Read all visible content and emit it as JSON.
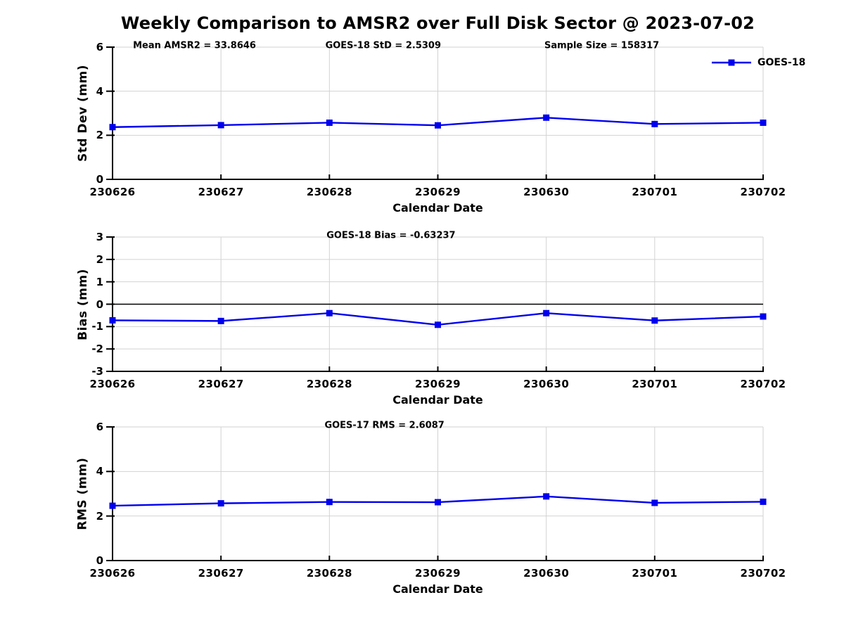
{
  "figure": {
    "title": "Weekly Comparison to AMSR2 over Full Disk Sector @ 2023-07-02",
    "background": "#ffffff"
  },
  "colors": {
    "series_line": "#0000ee",
    "grid": "#d2d2d2",
    "axis": "#000000",
    "zero_line": "#000000",
    "text": "#000000"
  },
  "legend": {
    "series_label": "GOES-18",
    "position": "top-right",
    "marker": "filled-square"
  },
  "x_axis": {
    "label": "Calendar Date",
    "categories": [
      "230626",
      "230627",
      "230628",
      "230629",
      "230630",
      "230701",
      "230702"
    ]
  },
  "chart_data": [
    {
      "type": "line",
      "name": "std-dev-panel",
      "ylabel": "Std Dev (mm)",
      "xlabel": "Calendar Date",
      "ylim": [
        0,
        6
      ],
      "yticks": [
        0,
        2,
        4,
        6
      ],
      "grid": true,
      "marker": "filled-square",
      "categories": [
        "230626",
        "230627",
        "230628",
        "230629",
        "230630",
        "230701",
        "230702"
      ],
      "series": [
        {
          "name": "GOES-18",
          "values": [
            2.37,
            2.46,
            2.57,
            2.45,
            2.8,
            2.51,
            2.57
          ]
        }
      ],
      "annotations": [
        "Mean AMSR2 = 33.8646",
        "GOES-18 StD = 2.5309",
        "Sample Size = 158317"
      ]
    },
    {
      "type": "line",
      "name": "bias-panel",
      "ylabel": "Bias (mm)",
      "xlabel": "Calendar Date",
      "ylim": [
        -3,
        3
      ],
      "yticks": [
        -3,
        -2,
        -1,
        0,
        1,
        2,
        3
      ],
      "grid": true,
      "zero_line": true,
      "marker": "filled-square",
      "categories": [
        "230626",
        "230627",
        "230628",
        "230629",
        "230630",
        "230701",
        "230702"
      ],
      "series": [
        {
          "name": "GOES-18",
          "values": [
            -0.72,
            -0.75,
            -0.4,
            -0.92,
            -0.4,
            -0.73,
            -0.55
          ]
        }
      ],
      "annotations": [
        "GOES-18 Bias  = -0.63237"
      ]
    },
    {
      "type": "line",
      "name": "rms-panel",
      "ylabel": "RMS (mm)",
      "xlabel": "Calendar Date",
      "ylim": [
        0,
        6
      ],
      "yticks": [
        0,
        2,
        4,
        6
      ],
      "grid": true,
      "marker": "filled-square",
      "categories": [
        "230626",
        "230627",
        "230628",
        "230629",
        "230630",
        "230701",
        "230702"
      ],
      "series": [
        {
          "name": "GOES-18",
          "values": [
            2.46,
            2.57,
            2.63,
            2.62,
            2.88,
            2.59,
            2.64
          ]
        }
      ],
      "annotations": [
        "GOES-17 RMS = 2.6087"
      ]
    }
  ]
}
